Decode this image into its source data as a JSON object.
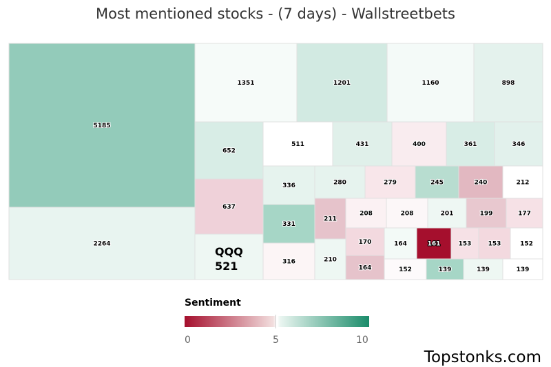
{
  "title": "Most mentioned stocks - (7 days) - Wallstreetbets",
  "legend": {
    "title": "Sentiment",
    "ticks": [
      "0",
      "5",
      "10"
    ],
    "colors": {
      "low": "#a50f2d",
      "mid": "#ffffff",
      "high": "#1a8c6a"
    }
  },
  "brand": "Topstonks.com",
  "chart_data": {
    "type": "treemap",
    "title": "Most mentioned stocks - (7 days) - Wallstreetbets",
    "color_scale": {
      "label": "Sentiment",
      "range": [
        0,
        10
      ]
    },
    "items": [
      {
        "value": 5185,
        "color": "#93cbba"
      },
      {
        "value": 2264,
        "color": "#e8f4f0"
      },
      {
        "value": 1351,
        "color": "#f6fbf9"
      },
      {
        "value": 1201,
        "color": "#d2eae2"
      },
      {
        "value": 1160,
        "color": "#f4faf8"
      },
      {
        "value": 898,
        "color": "#e4f2ed"
      },
      {
        "value": 652,
        "color": "#d8ede6"
      },
      {
        "value": 637,
        "color": "#efd1d9"
      },
      {
        "label": "QQQ",
        "value": 521,
        "color": "#eef7f3"
      },
      {
        "value": 511,
        "color": "#ffffff"
      },
      {
        "value": 431,
        "color": "#e0f0ea"
      },
      {
        "value": 400,
        "color": "#f9ecef"
      },
      {
        "value": 361,
        "color": "#d8ede6"
      },
      {
        "value": 346,
        "color": "#e2f1ec"
      },
      {
        "value": 336,
        "color": "#e6f3ee"
      },
      {
        "value": 331,
        "color": "#a6d6c6"
      },
      {
        "value": 316,
        "color": "#fcf5f6"
      },
      {
        "value": 280,
        "color": "#e6f3ee"
      },
      {
        "value": 279,
        "color": "#f8e6ea"
      },
      {
        "value": 245,
        "color": "#b8ddd0"
      },
      {
        "value": 240,
        "color": "#e2b8c1"
      },
      {
        "value": 212,
        "color": "#ffffff"
      },
      {
        "value": 211,
        "color": "#e6c3cb"
      },
      {
        "value": 210,
        "color": "#eef7f3"
      },
      {
        "value": 208,
        "color": "#fbf1f3"
      },
      {
        "value": 208,
        "color": "#fcf7f8"
      },
      {
        "value": 201,
        "color": "#eef7f3"
      },
      {
        "value": 199,
        "color": "#e8c8cf"
      },
      {
        "value": 177,
        "color": "#f6e1e6"
      },
      {
        "value": 170,
        "color": "#f3d9df"
      },
      {
        "value": 164,
        "color": "#f3faf7"
      },
      {
        "value": 164,
        "color": "#e6c3cb"
      },
      {
        "value": 161,
        "color": "#a50f2d"
      },
      {
        "value": 153,
        "color": "#f6e1e6"
      },
      {
        "value": 153,
        "color": "#f3d9df"
      },
      {
        "value": 152,
        "color": "#ffffff"
      },
      {
        "value": 152,
        "color": "#fdfafb"
      },
      {
        "value": 139,
        "color": "#a6d6c6"
      },
      {
        "value": 139,
        "color": "#eef7f3"
      },
      {
        "value": 139,
        "color": "#ffffff"
      }
    ]
  }
}
